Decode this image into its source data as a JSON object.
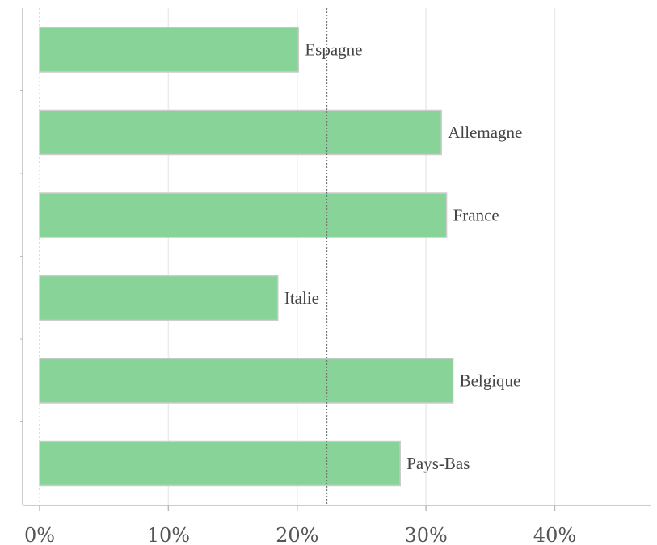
{
  "chart_data": {
    "type": "bar",
    "orientation": "horizontal",
    "categories": [
      "Espagne",
      "Allemagne",
      "France",
      "Italie",
      "Belgique",
      "Pays-Bas"
    ],
    "values": [
      20.1,
      31.2,
      31.6,
      18.5,
      32.1,
      28.0
    ],
    "value_unit": "%",
    "xlim": [
      0,
      47.5
    ],
    "xticks": [
      0,
      10,
      20,
      30,
      40
    ],
    "xtick_labels": [
      "0%",
      "10%",
      "20%",
      "30%",
      "40%"
    ],
    "reference_line": {
      "value": 22.3,
      "style": "dotted"
    },
    "grid": true,
    "bar_color": "#88d498",
    "bar_border_color": "#cccccc",
    "title": "",
    "xlabel": "",
    "ylabel": ""
  }
}
